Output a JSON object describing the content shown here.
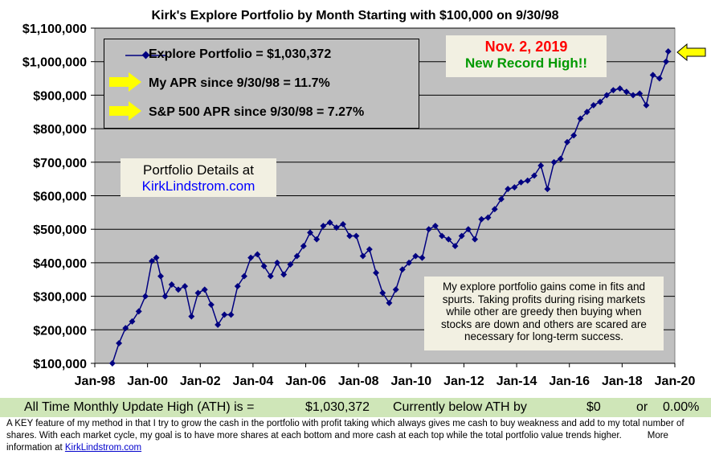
{
  "chart_data": {
    "type": "line",
    "title": "Kirk's Explore Portfolio by Month Starting with $100,000 on 9/30/98",
    "ylim": [
      100000,
      1100000
    ],
    "y_ticks": [
      "$100,000",
      "$200,000",
      "$300,000",
      "$400,000",
      "$500,000",
      "$600,000",
      "$700,000",
      "$800,000",
      "$900,000",
      "$1,000,000",
      "$1,100,000"
    ],
    "x_ticks": [
      "Jan-98",
      "Jan-00",
      "Jan-02",
      "Jan-04",
      "Jan-06",
      "Jan-08",
      "Jan-10",
      "Jan-12",
      "Jan-14",
      "Jan-16",
      "Jan-18",
      "Jan-20"
    ],
    "grid": "horizontal",
    "series": [
      {
        "name": "Explore Portfolio",
        "color": "#000080",
        "x": [
          "Sep-98",
          "Dec-98",
          "Mar-99",
          "Jun-99",
          "Sep-99",
          "Dec-99",
          "Mar-00",
          "May-00",
          "Jul-00",
          "Sep-00",
          "Dec-00",
          "Mar-01",
          "Jun-01",
          "Sep-01",
          "Dec-01",
          "Mar-02",
          "Jun-02",
          "Sep-02",
          "Dec-02",
          "Mar-03",
          "Jun-03",
          "Sep-03",
          "Dec-03",
          "Mar-04",
          "Jun-04",
          "Sep-04",
          "Dec-04",
          "Mar-05",
          "Jun-05",
          "Sep-05",
          "Dec-05",
          "Mar-06",
          "Jun-06",
          "Sep-06",
          "Dec-06",
          "Mar-07",
          "Jun-07",
          "Sep-07",
          "Dec-07",
          "Mar-08",
          "Jun-08",
          "Sep-08",
          "Dec-08",
          "Mar-09",
          "Jun-09",
          "Sep-09",
          "Dec-09",
          "Mar-10",
          "Jun-10",
          "Sep-10",
          "Dec-10",
          "Mar-11",
          "Jun-11",
          "Sep-11",
          "Dec-11",
          "Mar-12",
          "Jun-12",
          "Sep-12",
          "Dec-12",
          "Mar-13",
          "Jun-13",
          "Sep-13",
          "Dec-13",
          "Mar-14",
          "Jun-14",
          "Sep-14",
          "Dec-14",
          "Mar-15",
          "Jun-15",
          "Sep-15",
          "Dec-15",
          "Mar-16",
          "Jun-16",
          "Sep-16",
          "Dec-16",
          "Mar-17",
          "Jun-17",
          "Sep-17",
          "Dec-17",
          "Mar-18",
          "Jun-18",
          "Sep-18",
          "Dec-18",
          "Mar-19",
          "Jun-19",
          "Sep-19",
          "Oct-19"
        ],
        "values": [
          100000,
          160000,
          205000,
          225000,
          255000,
          300000,
          405000,
          415000,
          360000,
          300000,
          335000,
          320000,
          330000,
          240000,
          310000,
          320000,
          275000,
          215000,
          245000,
          245000,
          330000,
          360000,
          415000,
          425000,
          390000,
          360000,
          400000,
          365000,
          395000,
          420000,
          450000,
          490000,
          470000,
          510000,
          520000,
          505000,
          515000,
          480000,
          480000,
          420000,
          440000,
          370000,
          310000,
          280000,
          320000,
          380000,
          400000,
          420000,
          415000,
          500000,
          510000,
          480000,
          470000,
          450000,
          480000,
          500000,
          470000,
          530000,
          535000,
          560000,
          590000,
          620000,
          625000,
          640000,
          645000,
          660000,
          690000,
          620000,
          700000,
          710000,
          760000,
          780000,
          830000,
          850000,
          870000,
          880000,
          900000,
          915000,
          920000,
          910000,
          900000,
          905000,
          870000,
          960000,
          950000,
          1000000,
          1030372
        ]
      }
    ]
  },
  "legend": {
    "series_label": "Explore Portfolio  =  $1,030,372",
    "apr_label": "My APR since 9/30/98 =  11.7%",
    "sp_label": "S&P 500 APR since 9/30/98 =  7.27%"
  },
  "record": {
    "date": "Nov. 2, 2019",
    "text": "New Record High!!",
    "date_color": "#ff0000",
    "text_color": "#009900"
  },
  "details": {
    "title": "Portfolio Details at",
    "link": "KirkLindstrom.com"
  },
  "note": "My explore portfolio gains come in fits and spurts. Taking profits during rising markets while other are greedy then buying when stocks are down and others are scared are necessary for long-term success.",
  "ath": {
    "label": "All Time Monthly Update High (ATH) is =",
    "value": "$1,030,372",
    "below_label": "Currently below ATH by",
    "below_amount": "$0",
    "or": "or",
    "below_pct": "0.00%"
  },
  "footnote": {
    "text": "A KEY feature of my method in that I try to grow the cash in the portfolio with profit taking which always gives me cash to buy weakness and add to my total number of shares.  With each market cycle, my goal is to have more shares at each bottom and more cash at each top while the total portfolio value trends higher.",
    "more": "More information at",
    "link": "KirkLindstrom.com"
  },
  "colors": {
    "plot_bg": "#c0c0c0",
    "arrow": "#ffff00",
    "series": "#000080",
    "ath_bg": "#cfe6b8"
  }
}
